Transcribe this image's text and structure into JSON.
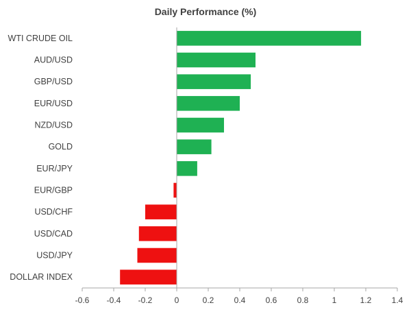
{
  "chart_data": {
    "type": "bar",
    "orientation": "horizontal",
    "title": "Daily Performance (%)",
    "xlabel": "",
    "ylabel": "",
    "xlim": [
      -0.6,
      1.4
    ],
    "x_ticks": [
      -0.6,
      -0.4,
      -0.2,
      0,
      0.2,
      0.4,
      0.6,
      0.8,
      1,
      1.2,
      1.4
    ],
    "x_tick_labels": [
      "-0.6",
      "-0.4",
      "-0.2",
      "0",
      "0.2",
      "0.4",
      "0.6",
      "0.8",
      "1",
      "1.2",
      "1.4"
    ],
    "grid": false,
    "legend": "none",
    "categories": [
      "WTI CRUDE OIL",
      "AUD/USD",
      "GBP/USD",
      "EUR/USD",
      "NZD/USD",
      "GOLD",
      "EUR/JPY",
      "EUR/GBP",
      "USD/CHF",
      "USD/CAD",
      "USD/JPY",
      "DOLLAR INDEX"
    ],
    "values": [
      1.17,
      0.5,
      0.47,
      0.4,
      0.3,
      0.22,
      0.13,
      -0.02,
      -0.2,
      -0.24,
      -0.25,
      -0.36
    ],
    "colors": {
      "positive": "#1fb153",
      "negative": "#ee1111",
      "axis": "#a6a6a6",
      "text": "#404040"
    }
  }
}
